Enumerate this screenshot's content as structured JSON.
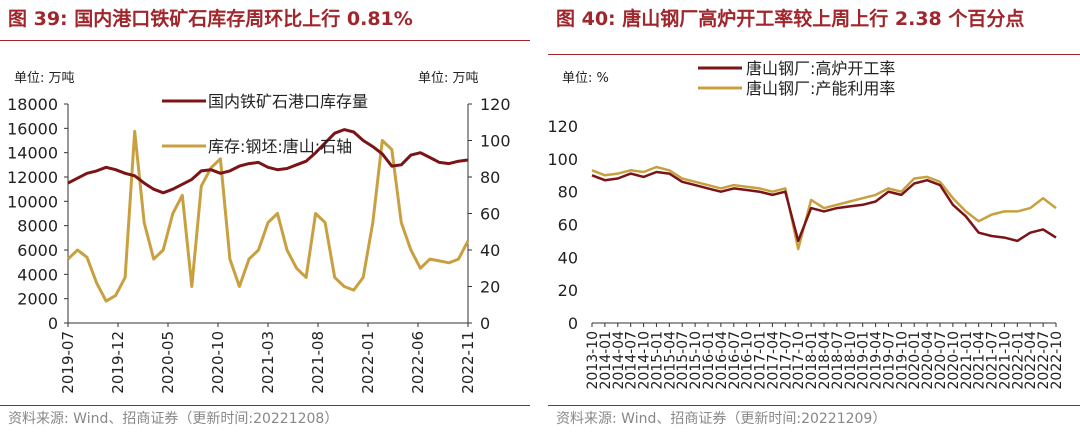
{
  "left": {
    "title": "图 39:  国内港口铁矿石库存周环比上行 0.81%",
    "unit_left": "单位:  万吨",
    "unit_right": "单位:  万吨",
    "source": "资料来源:  Wind、招商证券（更新时间:20221208）"
  },
  "right": {
    "title": "图 40:  唐山钢厂高炉开工率较上周上行 2.38 个百分点",
    "unit": "单位:  %",
    "source": "资料来源:  Wind、招商证券（更新时间:20221209）"
  },
  "chart_data": [
    {
      "type": "line",
      "x_ticks": [
        "2019-07",
        "2019-12",
        "2020-05",
        "2020-10",
        "2021-03",
        "2021-08",
        "2022-01",
        "2022-06",
        "2022-11"
      ],
      "y_ticks": [
        "0",
        "2000",
        "4000",
        "6000",
        "8000",
        "10000",
        "12000",
        "14000",
        "16000",
        "18000"
      ],
      "y2_ticks": [
        "0",
        "20",
        "40",
        "60",
        "80",
        "100",
        "120"
      ],
      "ylim": [
        0,
        18000
      ],
      "y2lim": [
        0,
        120
      ],
      "x_range": [
        0,
        42
      ],
      "legend_position": "top",
      "series": [
        {
          "name": "国内铁矿石港口库存量",
          "axis": "left",
          "color": "#7b1416",
          "x": [
            0,
            1,
            2,
            3,
            4,
            5,
            6,
            7,
            8,
            9,
            10,
            11,
            12,
            13,
            14,
            15,
            16,
            17,
            18,
            19,
            20,
            21,
            22,
            23,
            24,
            25,
            26,
            27,
            28,
            29,
            30,
            31,
            32,
            33,
            34,
            35,
            36,
            37,
            38,
            39,
            40,
            41,
            42
          ],
          "values": [
            11500,
            11900,
            12300,
            12500,
            12800,
            12600,
            12300,
            12100,
            11500,
            11000,
            10700,
            11000,
            11400,
            11800,
            12500,
            12600,
            12300,
            12500,
            12900,
            13100,
            13200,
            12800,
            12600,
            12700,
            13000,
            13300,
            14000,
            14800,
            15600,
            15900,
            15700,
            15000,
            14500,
            13900,
            12900,
            13000,
            13800,
            14000,
            13600,
            13200,
            13100,
            13300,
            13400
          ]
        },
        {
          "name": "库存:钢坯:唐山:石轴",
          "axis": "right",
          "color": "#c8a040",
          "x": [
            0,
            1,
            2,
            3,
            4,
            5,
            6,
            7,
            8,
            9,
            10,
            11,
            12,
            13,
            14,
            15,
            16,
            17,
            18,
            19,
            20,
            21,
            22,
            23,
            24,
            25,
            26,
            27,
            28,
            29,
            30,
            31,
            32,
            33,
            34,
            35,
            36,
            37,
            38,
            39,
            40,
            41,
            42
          ],
          "values": [
            35,
            40,
            36,
            22,
            12,
            15,
            25,
            105,
            55,
            35,
            40,
            60,
            70,
            20,
            75,
            85,
            90,
            35,
            20,
            35,
            40,
            55,
            60,
            40,
            30,
            25,
            60,
            55,
            25,
            20,
            18,
            25,
            55,
            100,
            95,
            55,
            40,
            30,
            35,
            34,
            33,
            35,
            45
          ]
        }
      ]
    },
    {
      "type": "line",
      "x_ticks": [
        "2013-10",
        "2014-01",
        "2014-04",
        "2014-07",
        "2014-10",
        "2015-01",
        "2015-04",
        "2015-07",
        "2015-10",
        "2016-01",
        "2016-04",
        "2016-07",
        "2016-10",
        "2017-01",
        "2017-04",
        "2017-07",
        "2017-10",
        "2018-01",
        "2018-04",
        "2018-07",
        "2018-10",
        "2019-01",
        "2019-04",
        "2019-07",
        "2019-10",
        "2020-01",
        "2020-04",
        "2020-07",
        "2020-10",
        "2021-01",
        "2021-04",
        "2021-07",
        "2021-10",
        "2022-01",
        "2022-04",
        "2022-07",
        "2022-10"
      ],
      "y_ticks": [
        "0",
        "20",
        "40",
        "60",
        "80",
        "100",
        "120"
      ],
      "ylim": [
        0,
        120
      ],
      "x_range": [
        0,
        36
      ],
      "legend_position": "top",
      "series": [
        {
          "name": "唐山钢厂:高炉开工率",
          "color": "#7b1416",
          "x": [
            0,
            1,
            2,
            3,
            4,
            5,
            6,
            7,
            8,
            9,
            10,
            11,
            12,
            13,
            14,
            15,
            16,
            17,
            18,
            19,
            20,
            21,
            22,
            23,
            24,
            25,
            26,
            27,
            28,
            29,
            30,
            31,
            32,
            33,
            34,
            35,
            36
          ],
          "values": [
            90,
            87,
            88,
            91,
            89,
            92,
            91,
            86,
            84,
            82,
            80,
            82,
            81,
            80,
            78,
            80,
            50,
            70,
            68,
            70,
            71,
            72,
            74,
            80,
            78,
            85,
            87,
            84,
            72,
            65,
            55,
            53,
            52,
            50,
            55,
            57,
            52
          ]
        },
        {
          "name": "唐山钢厂:产能利用率",
          "color": "#c8a040",
          "x": [
            0,
            1,
            2,
            3,
            4,
            5,
            6,
            7,
            8,
            9,
            10,
            11,
            12,
            13,
            14,
            15,
            16,
            17,
            18,
            19,
            20,
            21,
            22,
            23,
            24,
            25,
            26,
            27,
            28,
            29,
            30,
            31,
            32,
            33,
            34,
            35,
            36
          ],
          "values": [
            93,
            90,
            91,
            93,
            92,
            95,
            93,
            88,
            86,
            84,
            82,
            84,
            83,
            82,
            80,
            82,
            45,
            75,
            70,
            72,
            74,
            76,
            78,
            82,
            80,
            88,
            89,
            86,
            76,
            68,
            62,
            66,
            68,
            68,
            70,
            76,
            70
          ]
        }
      ]
    }
  ]
}
